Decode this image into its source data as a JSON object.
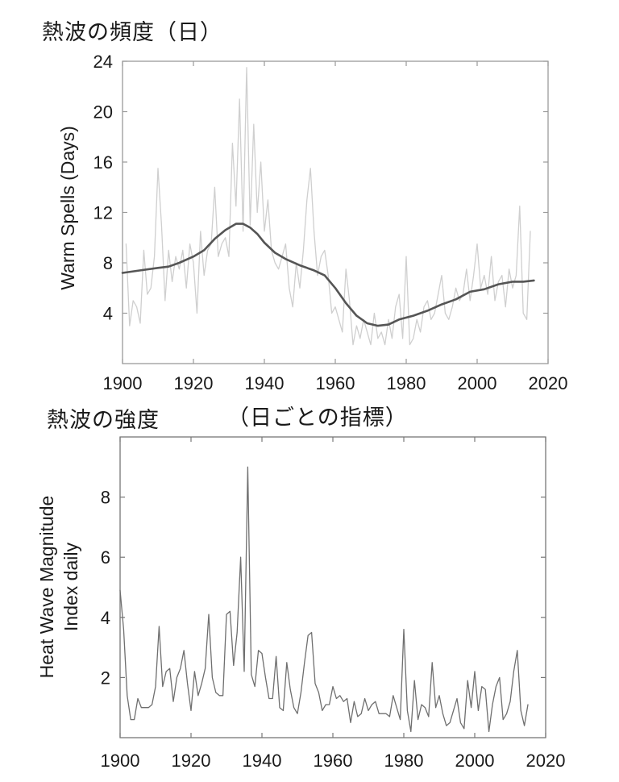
{
  "titles": {
    "top": "熱波の頻度（日）",
    "bottom": "熱波の強度",
    "bottom_sub": "（日ごとの指標）"
  },
  "chart_data": [
    {
      "type": "line",
      "ylabel": "Warm Spells (Days)",
      "xlim": [
        1900,
        2020
      ],
      "ylim": [
        0,
        24
      ],
      "xticks": [
        1900,
        1920,
        1940,
        1960,
        1980,
        2000,
        2020
      ],
      "yticks": [
        4,
        8,
        12,
        16,
        20,
        24
      ],
      "grid": false,
      "series": [
        {
          "color": "#cfcfcf",
          "x": [
            1901,
            1902,
            1903,
            1904,
            1905,
            1906,
            1907,
            1908,
            1909,
            1910,
            1911,
            1912,
            1913,
            1914,
            1915,
            1916,
            1917,
            1918,
            1919,
            1920,
            1921,
            1922,
            1923,
            1924,
            1925,
            1926,
            1927,
            1928,
            1929,
            1930,
            1931,
            1932,
            1933,
            1934,
            1935,
            1936,
            1937,
            1938,
            1939,
            1940,
            1941,
            1942,
            1943,
            1944,
            1945,
            1946,
            1947,
            1948,
            1949,
            1950,
            1951,
            1952,
            1953,
            1954,
            1955,
            1956,
            1957,
            1958,
            1959,
            1960,
            1961,
            1962,
            1963,
            1964,
            1965,
            1966,
            1967,
            1968,
            1969,
            1970,
            1971,
            1972,
            1973,
            1974,
            1975,
            1976,
            1977,
            1978,
            1979,
            1980,
            1981,
            1982,
            1983,
            1984,
            1985,
            1986,
            1987,
            1988,
            1989,
            1990,
            1991,
            1992,
            1993,
            1994,
            1995,
            1996,
            1997,
            1998,
            1999,
            2000,
            2001,
            2002,
            2003,
            2004,
            2005,
            2006,
            2007,
            2008,
            2009,
            2010,
            2011,
            2012,
            2013,
            2014,
            2015
          ],
          "values": [
            9.5,
            3.0,
            5.0,
            4.5,
            3.2,
            9.0,
            5.5,
            6.0,
            8.5,
            15.5,
            11.0,
            5.0,
            9.0,
            6.5,
            8.5,
            7.5,
            9.0,
            6.0,
            9.5,
            8.0,
            4.0,
            10.5,
            7.0,
            9.0,
            9.5,
            14.0,
            8.5,
            9.5,
            10.0,
            8.5,
            17.5,
            12.5,
            21.0,
            10.5,
            23.5,
            11.0,
            19.0,
            12.0,
            16.0,
            10.5,
            13.0,
            9.0,
            8.0,
            7.5,
            8.5,
            9.5,
            6.0,
            4.5,
            8.0,
            6.0,
            9.0,
            13.0,
            15.5,
            10.5,
            7.0,
            8.5,
            9.0,
            7.0,
            4.0,
            4.5,
            3.5,
            2.5,
            7.5,
            5.0,
            1.5,
            3.0,
            2.0,
            3.5,
            2.5,
            1.5,
            4.0,
            2.0,
            2.5,
            1.5,
            3.5,
            2.0,
            4.5,
            5.5,
            2.0,
            8.5,
            1.5,
            2.0,
            3.5,
            2.5,
            4.5,
            5.0,
            3.5,
            4.0,
            5.5,
            7.0,
            4.0,
            3.5,
            4.5,
            6.0,
            5.0,
            5.5,
            7.5,
            5.0,
            7.0,
            9.5,
            6.0,
            7.0,
            5.5,
            8.5,
            5.0,
            6.5,
            7.0,
            4.5,
            7.5,
            6.0,
            7.0,
            12.5,
            4.0,
            3.5,
            10.5
          ]
        },
        {
          "color": "#555555",
          "x": [
            1900,
            1905,
            1910,
            1913,
            1916,
            1920,
            1923,
            1926,
            1929,
            1932,
            1934,
            1936,
            1938,
            1940,
            1943,
            1946,
            1950,
            1954,
            1957,
            1960,
            1963,
            1966,
            1969,
            1972,
            1975,
            1978,
            1982,
            1986,
            1990,
            1994,
            1998,
            2002,
            2006,
            2010,
            2013,
            2016
          ],
          "values": [
            7.2,
            7.4,
            7.6,
            7.7,
            8.0,
            8.5,
            9.0,
            9.9,
            10.6,
            11.1,
            11.1,
            10.8,
            10.3,
            9.6,
            8.8,
            8.3,
            7.8,
            7.4,
            7.0,
            6.0,
            4.8,
            3.8,
            3.2,
            3.0,
            3.1,
            3.5,
            3.8,
            4.2,
            4.7,
            5.1,
            5.7,
            5.9,
            6.3,
            6.5,
            6.5,
            6.6
          ]
        }
      ]
    },
    {
      "type": "line",
      "ylabel": "Heat Wave Magnitude Index daily",
      "ylabel_lines": [
        "Heat Wave Magnitude",
        "Index daily"
      ],
      "xlim": [
        1900,
        2020
      ],
      "ylim": [
        0,
        10
      ],
      "xticks": [
        1900,
        1920,
        1940,
        1960,
        1980,
        2000,
        2020
      ],
      "yticks": [
        2,
        4,
        6,
        8
      ],
      "grid": false,
      "series": [
        {
          "color": "#6f6f6f",
          "x": [
            1900,
            1901,
            1902,
            1903,
            1904,
            1905,
            1906,
            1907,
            1908,
            1909,
            1910,
            1911,
            1912,
            1913,
            1914,
            1915,
            1916,
            1917,
            1918,
            1919,
            1920,
            1921,
            1922,
            1923,
            1924,
            1925,
            1926,
            1927,
            1928,
            1929,
            1930,
            1931,
            1932,
            1933,
            1934,
            1935,
            1936,
            1937,
            1938,
            1939,
            1940,
            1941,
            1942,
            1943,
            1944,
            1945,
            1946,
            1947,
            1948,
            1949,
            1950,
            1951,
            1952,
            1953,
            1954,
            1955,
            1956,
            1957,
            1958,
            1959,
            1960,
            1961,
            1962,
            1963,
            1964,
            1965,
            1966,
            1967,
            1968,
            1969,
            1970,
            1971,
            1972,
            1973,
            1974,
            1975,
            1976,
            1977,
            1978,
            1979,
            1980,
            1981,
            1982,
            1983,
            1984,
            1985,
            1986,
            1987,
            1988,
            1989,
            1990,
            1991,
            1992,
            1993,
            1994,
            1995,
            1996,
            1997,
            1998,
            1999,
            2000,
            2001,
            2002,
            2003,
            2004,
            2005,
            2006,
            2007,
            2008,
            2009,
            2010,
            2011,
            2012,
            2013,
            2014,
            2015
          ],
          "values": [
            4.9,
            3.6,
            1.4,
            0.6,
            0.6,
            1.3,
            1.0,
            1.0,
            1.0,
            1.1,
            1.7,
            3.7,
            1.7,
            2.2,
            2.3,
            1.2,
            2.0,
            2.3,
            2.9,
            1.8,
            0.9,
            2.2,
            1.4,
            1.8,
            2.3,
            4.1,
            2.0,
            1.5,
            1.4,
            1.4,
            4.1,
            4.2,
            2.4,
            3.5,
            6.0,
            2.2,
            9.0,
            2.1,
            1.7,
            2.9,
            2.8,
            2.0,
            1.3,
            1.3,
            2.7,
            1.0,
            0.9,
            2.5,
            1.6,
            1.0,
            0.8,
            1.5,
            2.5,
            3.4,
            3.5,
            1.8,
            1.5,
            0.9,
            1.1,
            1.1,
            1.7,
            1.3,
            1.4,
            1.2,
            1.3,
            0.5,
            1.2,
            0.7,
            0.8,
            1.3,
            0.9,
            1.1,
            1.2,
            0.8,
            0.8,
            0.8,
            0.7,
            1.4,
            1.0,
            0.6,
            3.6,
            0.9,
            0.2,
            1.9,
            0.6,
            1.1,
            1.0,
            0.7,
            2.5,
            1.0,
            1.4,
            0.8,
            0.4,
            0.5,
            0.9,
            1.3,
            0.5,
            0.3,
            1.9,
            1.0,
            2.2,
            0.9,
            1.7,
            1.6,
            0.2,
            1.1,
            1.7,
            2.0,
            0.6,
            0.8,
            1.2,
            2.2,
            2.9,
            0.9,
            0.4,
            1.1
          ]
        }
      ]
    }
  ]
}
